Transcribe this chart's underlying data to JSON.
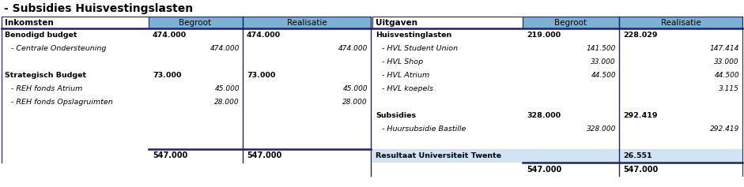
{
  "title": "- Subsidies Huisvestingslasten",
  "header_bg": "#7EB0D5",
  "result_bg": "#D0E4F3",
  "white_bg": "#FFFFFF",
  "border_color": "#1F1F7A",
  "fig_bg": "#FFFFFF",
  "left_section": {
    "header_label": "Inkomsten",
    "col_begroot": "Begroot",
    "col_realisatie": "Realisatie",
    "rows": [
      {
        "label": "Benodigd budget",
        "bold": true,
        "italic": false,
        "indent": 0,
        "begroot": "474.000",
        "begroot_main": true,
        "realisatie": "474.000",
        "real_main": true
      },
      {
        "label": "- Centrale Ondersteuning",
        "bold": false,
        "italic": true,
        "indent": 1,
        "begroot": "474.000",
        "begroot_main": false,
        "realisatie": "474.000",
        "real_main": false
      },
      {
        "label": "",
        "bold": false,
        "italic": false,
        "indent": 0,
        "begroot": "",
        "begroot_main": false,
        "realisatie": "",
        "real_main": false
      },
      {
        "label": "Strategisch Budget",
        "bold": true,
        "italic": false,
        "indent": 0,
        "begroot": "73.000",
        "begroot_main": true,
        "realisatie": "73.000",
        "real_main": true
      },
      {
        "label": "- REH fonds Atrium",
        "bold": false,
        "italic": true,
        "indent": 1,
        "begroot": "45.000",
        "begroot_main": false,
        "realisatie": "45.000",
        "real_main": false
      },
      {
        "label": "- REH fonds Opslagruimten",
        "bold": false,
        "italic": true,
        "indent": 1,
        "begroot": "28.000",
        "begroot_main": false,
        "realisatie": "28.000",
        "real_main": false
      },
      {
        "label": "",
        "bold": false,
        "italic": false,
        "indent": 0,
        "begroot": "",
        "begroot_main": false,
        "realisatie": "",
        "real_main": false
      },
      {
        "label": "",
        "bold": false,
        "italic": false,
        "indent": 0,
        "begroot": "",
        "begroot_main": false,
        "realisatie": "",
        "real_main": false
      },
      {
        "label": "",
        "bold": false,
        "italic": false,
        "indent": 0,
        "begroot": "",
        "begroot_main": false,
        "realisatie": "",
        "real_main": false
      }
    ],
    "total_begroot": "547.000",
    "total_realisatie": "547.000"
  },
  "right_section": {
    "header_label": "Uitgaven",
    "col_begroot": "Begroot",
    "col_realisatie": "Realisatie",
    "rows": [
      {
        "label": "Huisvestinglasten",
        "bold": true,
        "italic": false,
        "indent": 0,
        "begroot": "219.000",
        "begroot_main": true,
        "realisatie": "228.029",
        "real_main": true,
        "result_row": false
      },
      {
        "label": "- HVL Student Union",
        "bold": false,
        "italic": true,
        "indent": 1,
        "begroot": "141.500",
        "begroot_main": false,
        "realisatie": "147.414",
        "real_main": false,
        "result_row": false
      },
      {
        "label": "- HVL Shop",
        "bold": false,
        "italic": true,
        "indent": 1,
        "begroot": "33.000",
        "begroot_main": false,
        "realisatie": "33.000",
        "real_main": false,
        "result_row": false
      },
      {
        "label": "- HVL Atrium",
        "bold": false,
        "italic": true,
        "indent": 1,
        "begroot": "44.500",
        "begroot_main": false,
        "realisatie": "44.500",
        "real_main": false,
        "result_row": false
      },
      {
        "label": "- HVL koepels",
        "bold": false,
        "italic": true,
        "indent": 1,
        "begroot": "",
        "begroot_main": false,
        "realisatie": "3.115",
        "real_main": false,
        "result_row": false
      },
      {
        "label": "",
        "bold": false,
        "italic": false,
        "indent": 0,
        "begroot": "",
        "begroot_main": false,
        "realisatie": "",
        "real_main": false,
        "result_row": false
      },
      {
        "label": "Subsidies",
        "bold": true,
        "italic": false,
        "indent": 0,
        "begroot": "328.000",
        "begroot_main": true,
        "realisatie": "292.419",
        "real_main": true,
        "result_row": false
      },
      {
        "label": "- Huursubsidie Bastille",
        "bold": false,
        "italic": true,
        "indent": 1,
        "begroot": "328.000",
        "begroot_main": false,
        "realisatie": "292.419",
        "real_main": false,
        "result_row": false
      },
      {
        "label": "",
        "bold": false,
        "italic": false,
        "indent": 0,
        "begroot": "",
        "begroot_main": false,
        "realisatie": "",
        "real_main": false,
        "result_row": false
      },
      {
        "label": "Resultaat Universiteit Twente",
        "bold": true,
        "italic": false,
        "indent": 0,
        "begroot": "",
        "begroot_main": false,
        "realisatie": "26.551",
        "real_main": true,
        "result_row": true
      }
    ],
    "total_begroot": "547.000",
    "total_realisatie": "547.000"
  }
}
